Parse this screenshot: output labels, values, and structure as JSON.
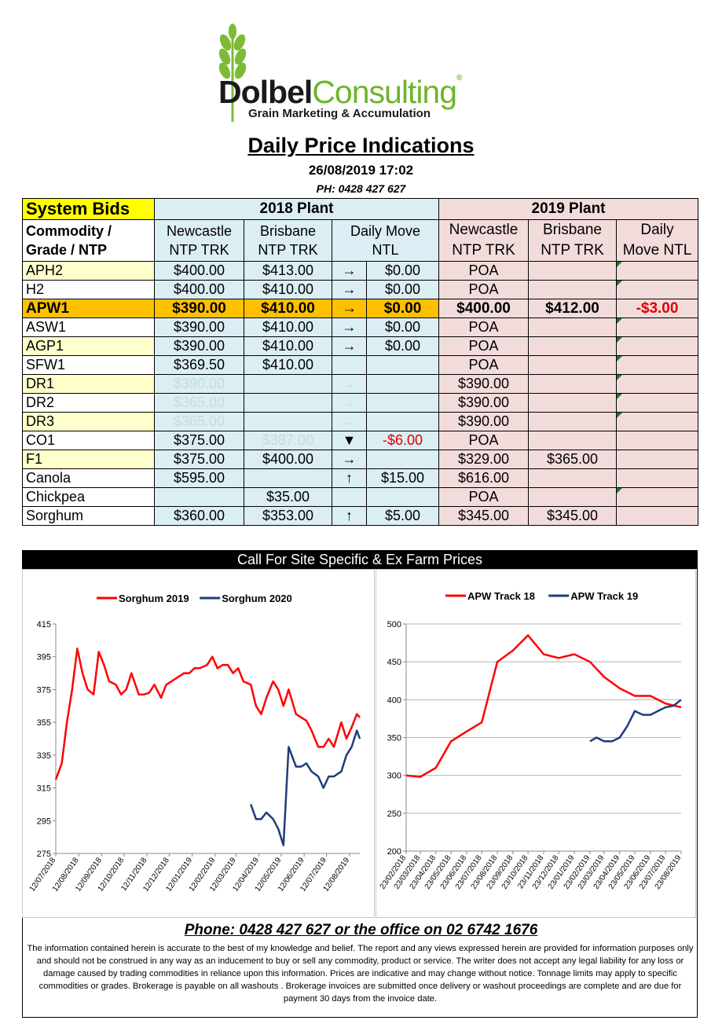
{
  "logo": {
    "brand_bold": "Dolbel",
    "brand_light": "Consulting",
    "reg": "®",
    "tagline": "Grain Marketing & Accumulation"
  },
  "title": "Daily Price Indications",
  "datetime": "26/08/2019 17:02",
  "phone_header": "PH: 0428 427 627",
  "table": {
    "system_bids": "System Bids",
    "plant_2018": "2018 Plant",
    "plant_2019": "2019 Plant",
    "commodity_header_1": "Commodity /",
    "commodity_header_2": "Grade / NTP",
    "h_newcastle_1": "Newcastle",
    "h_newcastle_2": "NTP TRK",
    "h_brisbane_1": "Brisbane",
    "h_brisbane_2": "NTP TRK",
    "h_daily_1": "Daily  Move",
    "h_daily_2": "NTL",
    "h19_newcastle_1": "Newcastle",
    "h19_newcastle_2": "NTP TRK",
    "h19_brisbane_1": "Brisbane",
    "h19_brisbane_2": "NTP TRK",
    "h19_daily_1": "Daily",
    "h19_daily_2": "Move NTL",
    "rows": [
      {
        "name": "APH2",
        "n18": "$400.00",
        "b18": "$413.00",
        "arrow": "→",
        "move": "$0.00",
        "n19": "POA",
        "b19": "",
        "move19": ""
      },
      {
        "name": "H2",
        "n18": "$400.00",
        "b18": "$410.00",
        "arrow": "→",
        "move": "$0.00",
        "n19": "POA",
        "b19": "",
        "move19": ""
      },
      {
        "name": "APW1",
        "n18": "$390.00",
        "b18": "$410.00",
        "arrow": "→",
        "move": "$0.00",
        "n19": "$400.00",
        "b19": "$412.00",
        "move19": "-$3.00"
      },
      {
        "name": "ASW1",
        "n18": "$390.00",
        "b18": "$410.00",
        "arrow": "→",
        "move": "$0.00",
        "n19": "POA",
        "b19": "",
        "move19": ""
      },
      {
        "name": "AGP1",
        "n18": "$390.00",
        "b18": "$410.00",
        "arrow": "→",
        "move": "$0.00",
        "n19": "POA",
        "b19": "",
        "move19": ""
      },
      {
        "name": "SFW1",
        "n18": "$369.50",
        "b18": "$410.00",
        "arrow": "",
        "move": "",
        "n19": "POA",
        "b19": "",
        "move19": ""
      },
      {
        "name": "DR1",
        "n18": "$390.00",
        "b18": "",
        "arrow": "→",
        "move": "",
        "n19": "$390.00",
        "b19": "",
        "move19": ""
      },
      {
        "name": "DR2",
        "n18": "$365.00",
        "b18": "",
        "arrow": "→",
        "move": "",
        "n19": "$390.00",
        "b19": "",
        "move19": ""
      },
      {
        "name": "DR3",
        "n18": "$365.00",
        "b18": "",
        "arrow": "→",
        "move": "",
        "n19": "$390.00",
        "b19": "",
        "move19": ""
      },
      {
        "name": "CO1",
        "n18": "$375.00",
        "b18": "$387.00",
        "arrow": "▼",
        "move": "-$6.00",
        "n19": "POA",
        "b19": "",
        "move19": ""
      },
      {
        "name": "F1",
        "n18": "$375.00",
        "b18": "$400.00",
        "arrow": "→",
        "move": "",
        "n19": "$329.00",
        "b19": "$365.00",
        "move19": ""
      },
      {
        "name": "Canola",
        "n18": "$595.00",
        "b18": "",
        "arrow": "↑",
        "move": "$15.00",
        "n19": "$616.00",
        "b19": "",
        "move19": ""
      },
      {
        "name": "Chickpea",
        "n18": "",
        "b18": "$35.00",
        "arrow": "",
        "move": "",
        "n19": "POA",
        "b19": "",
        "move19": ""
      },
      {
        "name": "Sorghum",
        "n18": "$360.00",
        "b18": "$353.00",
        "arrow": "↑",
        "move": "$5.00",
        "n19": "$345.00",
        "b19": "$345.00",
        "move19": ""
      }
    ]
  },
  "call_to_action": "Call For Site Specific & Ex Farm Prices",
  "chart_data": [
    {
      "type": "line",
      "series": [
        {
          "name": "Sorghum 2019",
          "color": "#ff0000",
          "x": [
            "12/07/2018",
            "20/07/2018",
            "27/07/2018",
            "03/08/2018",
            "10/08/2018",
            "17/08/2018",
            "24/08/2018",
            "01/09/2018",
            "08/09/2018",
            "15/09/2018",
            "22/09/2018",
            "01/10/2018",
            "08/10/2018",
            "15/10/2018",
            "22/10/2018",
            "01/11/2018",
            "08/11/2018",
            "15/11/2018",
            "22/11/2018",
            "01/12/2018",
            "08/12/2018",
            "15/12/2018",
            "01/01/2019",
            "08/01/2019",
            "15/01/2019",
            "22/01/2019",
            "01/02/2019",
            "08/02/2019",
            "15/02/2019",
            "22/02/2019",
            "01/03/2019",
            "08/03/2019",
            "15/03/2019",
            "22/03/2019",
            "01/04/2019",
            "08/04/2019",
            "15/04/2019",
            "22/04/2019",
            "01/05/2019",
            "08/05/2019",
            "15/05/2019",
            "22/05/2019",
            "01/06/2019",
            "08/06/2019",
            "15/06/2019",
            "22/06/2019",
            "01/07/2019",
            "08/07/2019",
            "15/07/2019",
            "22/07/2019",
            "01/08/2019",
            "08/08/2019",
            "15/08/2019",
            "22/08/2019",
            "26/08/2019"
          ],
          "values": [
            320,
            330,
            355,
            375,
            400,
            385,
            375,
            372,
            398,
            390,
            380,
            378,
            372,
            375,
            385,
            372,
            372,
            373,
            378,
            370,
            378,
            380,
            385,
            385,
            388,
            388,
            390,
            395,
            388,
            390,
            390,
            385,
            388,
            380,
            378,
            365,
            360,
            370,
            380,
            375,
            365,
            375,
            360,
            358,
            356,
            350,
            340,
            340,
            345,
            340,
            355,
            345,
            352,
            360,
            358
          ]
        },
        {
          "name": "Sorghum 2020",
          "color": "#1f3d7a",
          "x": [
            "01/04/2019",
            "08/04/2019",
            "15/04/2019",
            "22/04/2019",
            "01/05/2019",
            "08/05/2019",
            "15/05/2019",
            "22/05/2019",
            "01/06/2019",
            "08/06/2019",
            "15/06/2019",
            "22/06/2019",
            "01/07/2019",
            "08/07/2019",
            "15/07/2019",
            "22/07/2019",
            "01/08/2019",
            "08/08/2019",
            "15/08/2019",
            "22/08/2019",
            "26/08/2019"
          ],
          "values": [
            305,
            296,
            296,
            300,
            296,
            290,
            280,
            340,
            328,
            328,
            330,
            325,
            322,
            315,
            322,
            322,
            325,
            335,
            340,
            350,
            345
          ]
        }
      ],
      "x_ticks": [
        "12/07/2018",
        "12/08/2018",
        "12/09/2018",
        "12/10/2018",
        "12/11/2018",
        "12/12/2018",
        "12/01/2019",
        "12/02/2019",
        "12/03/2019",
        "12/04/2019",
        "12/05/2019",
        "12/06/2019",
        "12/07/2019",
        "12/08/2019"
      ],
      "y_ticks": [
        "415",
        "395",
        "375",
        "355",
        "335",
        "315",
        "295",
        "275"
      ],
      "ylim": [
        275,
        415
      ],
      "grid": false,
      "legend": "top"
    },
    {
      "type": "line",
      "series": [
        {
          "name": "APW Track 18",
          "color": "#ff0000",
          "x": [
            "23/02/2018",
            "23/03/2018",
            "23/04/2018",
            "23/05/2018",
            "23/06/2018",
            "23/07/2018",
            "23/08/2018",
            "23/09/2018",
            "23/10/2018",
            "23/11/2018",
            "23/12/2018",
            "23/01/2019",
            "23/02/2019",
            "23/03/2019",
            "23/04/2019",
            "23/05/2019",
            "23/06/2019",
            "23/07/2019",
            "23/08/2019"
          ],
          "values": [
            300,
            298,
            310,
            345,
            358,
            370,
            450,
            465,
            485,
            460,
            455,
            460,
            450,
            430,
            415,
            405,
            405,
            395,
            390
          ]
        },
        {
          "name": "APW Track 19",
          "color": "#1f3d7a",
          "x": [
            "23/02/2019",
            "08/03/2019",
            "23/03/2019",
            "08/04/2019",
            "23/04/2019",
            "08/05/2019",
            "23/05/2019",
            "08/06/2019",
            "23/06/2019",
            "08/07/2019",
            "23/07/2019",
            "08/08/2019",
            "23/08/2019"
          ],
          "values": [
            345,
            350,
            345,
            345,
            350,
            365,
            385,
            380,
            380,
            385,
            390,
            392,
            400
          ]
        }
      ],
      "x_ticks": [
        "23/02/2018",
        "23/03/2018",
        "23/04/2018",
        "23/05/2018",
        "23/06/2018",
        "23/07/2018",
        "23/08/2018",
        "23/09/2018",
        "23/10/2018",
        "23/11/2018",
        "23/12/2018",
        "23/01/2019",
        "23/02/2019",
        "23/03/2019",
        "23/04/2019",
        "23/05/2019",
        "23/06/2019",
        "23/07/2019",
        "23/08/2019"
      ],
      "y_ticks": [
        "500",
        "450",
        "400",
        "350",
        "300",
        "250",
        "200"
      ],
      "ylim": [
        200,
        500
      ],
      "grid": true,
      "legend": "top"
    }
  ],
  "footer": {
    "phone_line": "Phone: 0428 427 627 or the office on 02 6742 1676",
    "disclaimer": "The information contained herein is accurate to the best of my knowledge and belief.  The report and any views expressed herein are provided for information purposes only and should not be construed in any way as an inducement to buy or sell any commodity, product or service. The writer does not accept any legal liability for any loss or damage caused by trading commodities in reliance upon this information. Prices are indicative and may change without notice. Tonnage limits may apply to specific commodities or grades.  Brokerage is payable on all washouts . Brokerage invoices are submitted once delivery or washout proceedings are complete and are due for payment 30 days from the invoice date."
  }
}
